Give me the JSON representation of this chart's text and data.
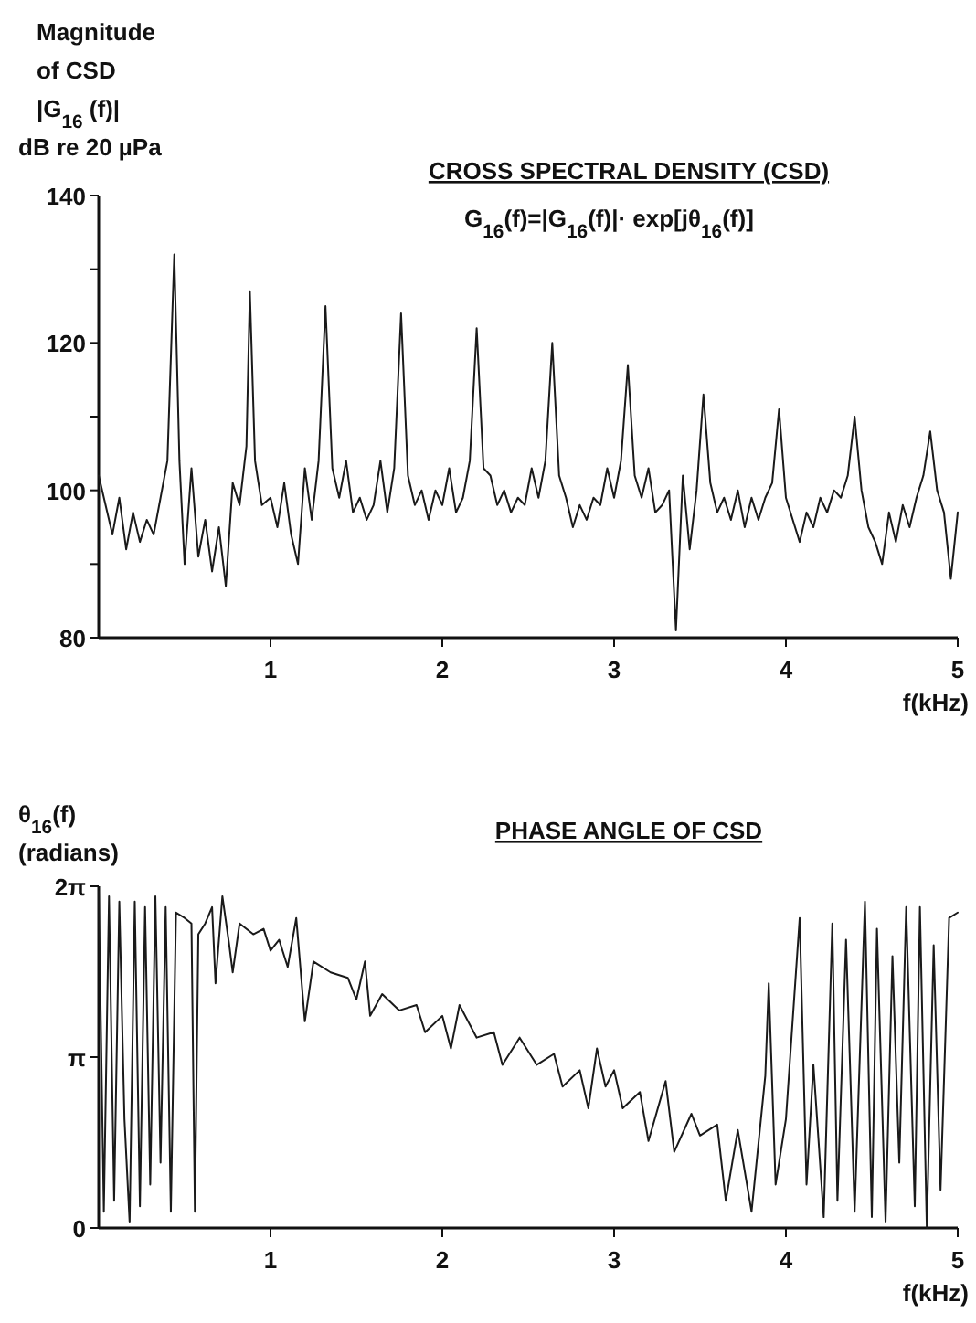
{
  "chart_data": [
    {
      "type": "line",
      "title": "CROSS SPECTRAL DENSITY (CSD)",
      "subtitle": "G$_{16}$(f)=|G$_{16}$(f)|· exp[jθ$_{16}$(f)]",
      "xlabel": "f(kHz)",
      "ylabel": "Magnitude\nof CSD\n|G$_{16}$ (f)|\ndB re 20 µPa",
      "xlim": [
        0,
        5
      ],
      "xticks": [
        1,
        2,
        3,
        4,
        5
      ],
      "ylim": [
        80,
        140
      ],
      "yticks": [
        80,
        {
          "value": 90,
          "label": null
        },
        100,
        {
          "value": 110,
          "label": null
        },
        120,
        {
          "value": 130,
          "label": null
        },
        140
      ],
      "x": [
        0,
        0.04,
        0.08,
        0.12,
        0.16,
        0.2,
        0.24,
        0.28,
        0.32,
        0.36,
        0.4,
        0.44,
        0.47,
        0.5,
        0.54,
        0.58,
        0.62,
        0.66,
        0.7,
        0.74,
        0.78,
        0.82,
        0.86,
        0.88,
        0.91,
        0.95,
        1,
        1.04,
        1.08,
        1.12,
        1.16,
        1.2,
        1.24,
        1.28,
        1.32,
        1.36,
        1.4,
        1.44,
        1.48,
        1.52,
        1.56,
        1.6,
        1.64,
        1.68,
        1.72,
        1.76,
        1.8,
        1.84,
        1.88,
        1.92,
        1.96,
        2,
        2.04,
        2.08,
        2.12,
        2.16,
        2.2,
        2.24,
        2.28,
        2.32,
        2.36,
        2.4,
        2.44,
        2.48,
        2.52,
        2.56,
        2.6,
        2.64,
        2.68,
        2.72,
        2.76,
        2.8,
        2.84,
        2.88,
        2.92,
        2.96,
        3,
        3.04,
        3.08,
        3.12,
        3.16,
        3.2,
        3.24,
        3.28,
        3.32,
        3.36,
        3.4,
        3.44,
        3.48,
        3.52,
        3.56,
        3.6,
        3.64,
        3.68,
        3.72,
        3.76,
        3.8,
        3.84,
        3.88,
        3.92,
        3.96,
        4,
        4.04,
        4.08,
        4.12,
        4.16,
        4.2,
        4.24,
        4.28,
        4.32,
        4.36,
        4.4,
        4.44,
        4.48,
        4.52,
        4.56,
        4.6,
        4.64,
        4.68,
        4.72,
        4.76,
        4.8,
        4.84,
        4.88,
        4.92,
        4.96,
        5
      ],
      "series": [
        {
          "color": "#1a1a1a",
          "values": [
            102,
            98,
            94,
            99,
            92,
            97,
            93,
            96,
            94,
            99,
            104,
            132,
            104,
            90,
            103,
            91,
            96,
            89,
            95,
            87,
            101,
            98,
            106,
            127,
            104,
            98,
            99,
            95,
            101,
            94,
            90,
            103,
            96,
            104,
            125,
            103,
            99,
            104,
            97,
            99,
            96,
            98,
            104,
            97,
            103,
            124,
            102,
            98,
            100,
            96,
            100,
            98,
            103,
            97,
            99,
            104,
            122,
            103,
            102,
            98,
            100,
            97,
            99,
            98,
            103,
            99,
            104,
            120,
            102,
            99,
            95,
            98,
            96,
            99,
            98,
            103,
            99,
            104,
            117,
            102,
            99,
            103,
            97,
            98,
            100,
            81,
            102,
            92,
            100,
            113,
            101,
            97,
            99,
            96,
            100,
            95,
            99,
            96,
            99,
            101,
            111,
            99,
            96,
            93,
            97,
            95,
            99,
            97,
            100,
            99,
            102,
            110,
            100,
            95,
            93,
            90,
            97,
            93,
            98,
            95,
            99,
            102,
            108,
            100,
            97,
            88,
            97
          ]
        }
      ]
    },
    {
      "type": "line",
      "title": "PHASE ANGLE OF CSD",
      "xlabel": "f(kHz)",
      "ylabel": "θ$_{16}$(f)\n(radians)",
      "xlim": [
        0,
        5
      ],
      "xticks": [
        1,
        2,
        3,
        4,
        5
      ],
      "ylim": [
        0,
        6.2832
      ],
      "yticks": [
        0,
        {
          "value": 3.1416,
          "label": "π"
        },
        {
          "value": 6.2832,
          "label": "2π"
        }
      ],
      "x": [
        0,
        0.03,
        0.06,
        0.09,
        0.12,
        0.15,
        0.18,
        0.21,
        0.24,
        0.27,
        0.3,
        0.33,
        0.36,
        0.39,
        0.42,
        0.45,
        0.5,
        0.54,
        0.56,
        0.58,
        0.62,
        0.66,
        0.68,
        0.72,
        0.76,
        0.78,
        0.82,
        0.9,
        0.96,
        1,
        1.05,
        1.1,
        1.15,
        1.2,
        1.25,
        1.35,
        1.45,
        1.5,
        1.55,
        1.58,
        1.65,
        1.75,
        1.85,
        1.9,
        2,
        2.05,
        2.1,
        2.2,
        2.3,
        2.35,
        2.45,
        2.55,
        2.65,
        2.7,
        2.8,
        2.85,
        2.9,
        2.95,
        3,
        3.05,
        3.15,
        3.2,
        3.3,
        3.35,
        3.45,
        3.5,
        3.6,
        3.65,
        3.72,
        3.8,
        3.88,
        3.9,
        3.94,
        4,
        4.08,
        4.12,
        4.16,
        4.22,
        4.27,
        4.3,
        4.35,
        4.4,
        4.46,
        4.5,
        4.53,
        4.58,
        4.62,
        4.66,
        4.7,
        4.75,
        4.78,
        4.82,
        4.86,
        4.9,
        4.95,
        5
      ],
      "series": [
        {
          "color": "#1a1a1a",
          "values": [
            6.2,
            0.3,
            6.1,
            0.5,
            6.0,
            2.0,
            0.1,
            6.0,
            0.4,
            5.9,
            0.8,
            6.1,
            1.2,
            5.9,
            0.3,
            5.8,
            5.7,
            5.6,
            0.3,
            5.4,
            5.6,
            5.9,
            4.5,
            6.1,
            5.2,
            4.7,
            5.6,
            5.4,
            5.5,
            5.1,
            5.3,
            4.8,
            5.7,
            3.8,
            4.9,
            4.7,
            4.6,
            4.2,
            4.9,
            3.9,
            4.3,
            4.0,
            4.1,
            3.6,
            3.9,
            3.3,
            4.1,
            3.5,
            3.6,
            3.0,
            3.5,
            3.0,
            3.2,
            2.6,
            2.9,
            2.2,
            3.3,
            2.6,
            2.9,
            2.2,
            2.5,
            1.6,
            2.7,
            1.4,
            2.1,
            1.7,
            1.9,
            0.5,
            1.8,
            0.3,
            2.8,
            4.5,
            0.8,
            2.0,
            5.7,
            0.8,
            3.0,
            0.2,
            5.6,
            0.5,
            5.3,
            0.3,
            6.0,
            0.2,
            5.5,
            0.1,
            5.0,
            1.2,
            5.9,
            0.4,
            5.9,
            0.0,
            5.2,
            0.7,
            5.7,
            5.8
          ]
        }
      ]
    }
  ]
}
